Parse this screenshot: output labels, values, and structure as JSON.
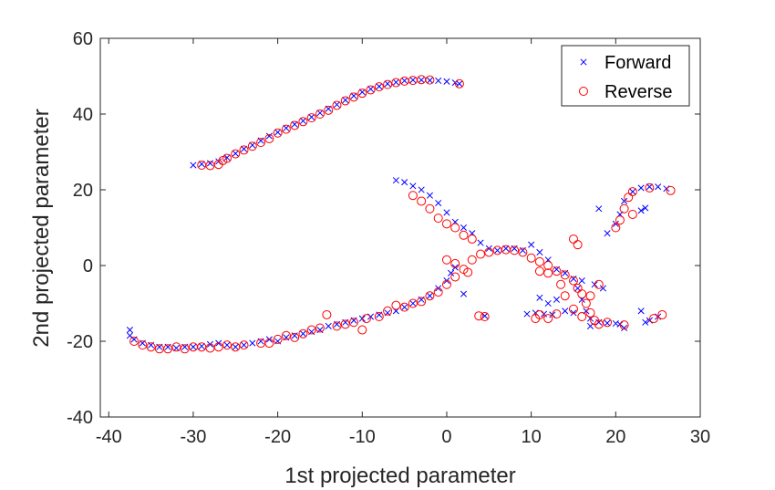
{
  "chart_data": {
    "type": "scatter",
    "title": "",
    "xlabel": "1st projected parameter",
    "ylabel": "2nd projected parameter",
    "xlim": [
      -41,
      30
    ],
    "ylim": [
      -40,
      60
    ],
    "xticks": [
      -40,
      -30,
      -20,
      -10,
      0,
      10,
      20,
      30
    ],
    "yticks": [
      -40,
      -20,
      0,
      20,
      40,
      60
    ],
    "grid": false,
    "legend_position": "top-right",
    "series": [
      {
        "name": "Forward",
        "marker": "x",
        "color": "#0000ff",
        "points": [
          [
            -30,
            26.5
          ],
          [
            -29,
            26.8
          ],
          [
            -28,
            27
          ],
          [
            -27,
            27.5
          ],
          [
            -26,
            28.5
          ],
          [
            -25,
            29.6
          ],
          [
            -24,
            30.8
          ],
          [
            -23,
            31.8
          ],
          [
            -22,
            33
          ],
          [
            -21,
            34.2
          ],
          [
            -20,
            35.2
          ],
          [
            -19,
            36.3
          ],
          [
            -18,
            37.3
          ],
          [
            -17,
            38.2
          ],
          [
            -16,
            39.2
          ],
          [
            -15,
            40.3
          ],
          [
            -14,
            41.4
          ],
          [
            -13,
            42.5
          ],
          [
            -12,
            43.7
          ],
          [
            -11,
            44.8
          ],
          [
            -10,
            45.8
          ],
          [
            -9,
            46.6
          ],
          [
            -8,
            47.3
          ],
          [
            -7,
            48
          ],
          [
            -6,
            48.4
          ],
          [
            -5,
            48.8
          ],
          [
            -4,
            49
          ],
          [
            -3,
            49
          ],
          [
            -2,
            48.9
          ],
          [
            -1,
            48.8
          ],
          [
            0,
            48.6
          ],
          [
            1,
            48.3
          ],
          [
            1.5,
            48
          ],
          [
            -37.5,
            -17
          ],
          [
            -37.5,
            -18.5
          ],
          [
            -37,
            -19.5
          ],
          [
            -36,
            -20.5
          ],
          [
            -35,
            -21
          ],
          [
            -34,
            -21.5
          ],
          [
            -33,
            -21.5
          ],
          [
            -32,
            -21.8
          ],
          [
            -31,
            -21.5
          ],
          [
            -30,
            -21.5
          ],
          [
            -29,
            -21.3
          ],
          [
            -28,
            -20.8
          ],
          [
            -27,
            -20.5
          ],
          [
            -26,
            -21
          ],
          [
            -25,
            -21.5
          ],
          [
            -24,
            -21
          ],
          [
            -23,
            -20.5
          ],
          [
            -22,
            -20
          ],
          [
            -21,
            -19.5
          ],
          [
            -20,
            -20
          ],
          [
            -19,
            -19
          ],
          [
            -18,
            -18.5
          ],
          [
            -17,
            -18
          ],
          [
            -16,
            -17.5
          ],
          [
            -15,
            -17
          ],
          [
            -14,
            -16
          ],
          [
            -13,
            -15.5
          ],
          [
            -12,
            -15
          ],
          [
            -11,
            -14.5
          ],
          [
            -10,
            -14
          ],
          [
            -9,
            -13.5
          ],
          [
            -8,
            -13
          ],
          [
            -7,
            -12.5
          ],
          [
            -6,
            -12
          ],
          [
            -5,
            -11
          ],
          [
            -4,
            -10
          ],
          [
            -3,
            -9
          ],
          [
            -2,
            -8
          ],
          [
            -1,
            -6
          ],
          [
            0,
            -4
          ],
          [
            0.5,
            -2
          ],
          [
            1,
            -0.5
          ],
          [
            2,
            -7.5
          ],
          [
            -6,
            22.5
          ],
          [
            -5,
            22
          ],
          [
            -4,
            21
          ],
          [
            -3,
            20
          ],
          [
            -2,
            18.5
          ],
          [
            -1,
            16.5
          ],
          [
            0,
            14
          ],
          [
            1,
            11.5
          ],
          [
            2,
            10
          ],
          [
            3,
            8.5
          ],
          [
            4,
            6
          ],
          [
            5,
            4.5
          ],
          [
            6,
            4
          ],
          [
            7,
            4.5
          ],
          [
            8,
            4.5
          ],
          [
            9,
            4
          ],
          [
            10,
            5.5
          ],
          [
            11,
            3.5
          ],
          [
            12,
            1.5
          ],
          [
            13,
            -1
          ],
          [
            14,
            -2
          ],
          [
            15,
            -3.5
          ],
          [
            15.5,
            -6
          ],
          [
            16,
            -9
          ],
          [
            16.5,
            -12
          ],
          [
            17,
            -14
          ],
          [
            18,
            -15
          ],
          [
            19,
            -15.2
          ],
          [
            20,
            -15.3
          ],
          [
            4.5,
            -13.3
          ],
          [
            9.5,
            -12.8
          ],
          [
            10.5,
            -12.5
          ],
          [
            11.5,
            -12.8
          ],
          [
            12.5,
            -13
          ],
          [
            14,
            -12
          ],
          [
            15,
            -12.5
          ],
          [
            17,
            -16
          ],
          [
            20.5,
            -15.5
          ],
          [
            21,
            -16.5
          ],
          [
            18,
            15
          ],
          [
            19,
            8.5
          ],
          [
            20,
            11
          ],
          [
            20.5,
            13.5
          ],
          [
            21,
            17
          ],
          [
            22,
            19.5
          ],
          [
            23,
            20.5
          ],
          [
            24,
            20.8
          ],
          [
            25,
            20.8
          ],
          [
            26,
            20.3
          ],
          [
            23,
            14.5
          ],
          [
            23.5,
            15.2
          ],
          [
            23,
            -12
          ],
          [
            23.5,
            -15
          ],
          [
            24,
            -14.5
          ],
          [
            25,
            -13.5
          ],
          [
            18.5,
            -6
          ],
          [
            17.5,
            -5
          ],
          [
            16,
            -4
          ],
          [
            11,
            -8.5
          ],
          [
            12,
            -10
          ],
          [
            13,
            -9
          ]
        ]
      },
      {
        "name": "Reverse",
        "marker": "o",
        "color": "#ff0000",
        "points": [
          [
            -29,
            26.5
          ],
          [
            -28,
            26.4
          ],
          [
            -27,
            26.7
          ],
          [
            -26.5,
            27.7
          ],
          [
            -26,
            28.3
          ],
          [
            -25,
            29.5
          ],
          [
            -24,
            30.5
          ],
          [
            -23,
            31.5
          ],
          [
            -22,
            32.5
          ],
          [
            -21,
            33.5
          ],
          [
            -20,
            35
          ],
          [
            -19,
            36
          ],
          [
            -18,
            37
          ],
          [
            -17,
            38
          ],
          [
            -16,
            39
          ],
          [
            -15,
            40
          ],
          [
            -14,
            41
          ],
          [
            -13,
            42.3
          ],
          [
            -12,
            43.5
          ],
          [
            -11,
            44.5
          ],
          [
            -10,
            45.5
          ],
          [
            -9,
            46.4
          ],
          [
            -8,
            47.2
          ],
          [
            -7,
            47.8
          ],
          [
            -6,
            48.3
          ],
          [
            -5,
            48.7
          ],
          [
            -4,
            48.9
          ],
          [
            -3,
            49.1
          ],
          [
            -2,
            49
          ],
          [
            1.5,
            48
          ],
          [
            -37,
            -20
          ],
          [
            -36,
            -21
          ],
          [
            -35,
            -21.5
          ],
          [
            -34,
            -22
          ],
          [
            -33,
            -22
          ],
          [
            -32,
            -21.5
          ],
          [
            -31,
            -22
          ],
          [
            -30,
            -21.5
          ],
          [
            -29,
            -21.5
          ],
          [
            -28,
            -21.8
          ],
          [
            -27,
            -21.5
          ],
          [
            -26,
            -21
          ],
          [
            -25,
            -21.5
          ],
          [
            -24,
            -21
          ],
          [
            -22,
            -20.5
          ],
          [
            -21,
            -20.5
          ],
          [
            -20,
            -19.5
          ],
          [
            -19,
            -18.5
          ],
          [
            -18,
            -19
          ],
          [
            -17,
            -18
          ],
          [
            -16,
            -17
          ],
          [
            -15,
            -16.5
          ],
          [
            -14.2,
            -13
          ],
          [
            -13,
            -16
          ],
          [
            -12,
            -15.5
          ],
          [
            -11,
            -15
          ],
          [
            -10,
            -17
          ],
          [
            -9.5,
            -14
          ],
          [
            -8,
            -13.5
          ],
          [
            -7,
            -12
          ],
          [
            -6,
            -10.5
          ],
          [
            -5,
            -11
          ],
          [
            -4,
            -10
          ],
          [
            -3,
            -9.5
          ],
          [
            -2,
            -8
          ],
          [
            -1,
            -7
          ],
          [
            0,
            -5
          ],
          [
            1,
            -3
          ],
          [
            2,
            -1
          ],
          [
            3,
            1.5
          ],
          [
            4,
            3
          ],
          [
            5,
            3.5
          ],
          [
            6,
            4
          ],
          [
            7,
            4.2
          ],
          [
            8,
            4
          ],
          [
            9,
            3.5
          ],
          [
            10,
            2
          ],
          [
            11,
            1
          ],
          [
            12,
            0
          ],
          [
            13,
            -1.5
          ],
          [
            14,
            -2.5
          ],
          [
            15,
            -4
          ],
          [
            15.5,
            -6
          ],
          [
            16,
            -7.5
          ],
          [
            16.5,
            -10
          ],
          [
            17,
            -12.5
          ],
          [
            17.5,
            -14.5
          ],
          [
            18,
            -15.5
          ],
          [
            19,
            -15
          ],
          [
            -4,
            18.5
          ],
          [
            -3,
            17
          ],
          [
            -2,
            15
          ],
          [
            -1,
            12.5
          ],
          [
            0,
            11
          ],
          [
            1,
            10
          ],
          [
            2,
            8
          ],
          [
            3,
            7
          ],
          [
            0,
            1.5
          ],
          [
            1,
            0.5
          ],
          [
            2.5,
            -1.8
          ],
          [
            3.8,
            -13.3
          ],
          [
            4.5,
            -13.5
          ],
          [
            10.5,
            -14
          ],
          [
            11,
            -13
          ],
          [
            12,
            -14
          ],
          [
            13,
            -12.8
          ],
          [
            15,
            -11.5
          ],
          [
            16,
            -13.5
          ],
          [
            21,
            -15.7
          ],
          [
            15,
            7
          ],
          [
            15.5,
            5.5
          ],
          [
            20,
            10
          ],
          [
            20.5,
            12
          ],
          [
            21,
            15
          ],
          [
            21.5,
            18
          ],
          [
            22,
            19.5
          ],
          [
            22,
            13.5
          ],
          [
            24,
            20.5
          ],
          [
            26.5,
            19.8
          ],
          [
            24.5,
            -14
          ],
          [
            25.5,
            -13
          ],
          [
            18,
            -5
          ],
          [
            11,
            -1.5
          ],
          [
            12,
            -2
          ],
          [
            13.5,
            -5
          ],
          [
            14,
            -8
          ],
          [
            17,
            -8
          ]
        ]
      }
    ]
  }
}
